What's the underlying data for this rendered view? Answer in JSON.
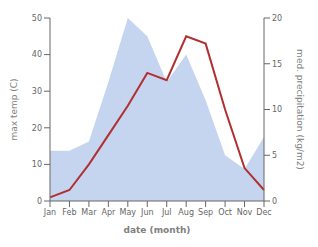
{
  "chart_data": {
    "type": "line",
    "xlabel": "date (month)",
    "ylabel": "max temp (C)",
    "y2label": "med. precipitation (kg/m2)",
    "categories": [
      "Jan",
      "Feb",
      "Mar",
      "Apr",
      "May",
      "Jun",
      "Jul",
      "Aug",
      "Sep",
      "Oct",
      "Nov",
      "Dec"
    ],
    "series": [
      {
        "type": "area",
        "axis": "y2",
        "color": "#c5d5ef",
        "values": [
          5.5,
          5.5,
          6.5,
          13,
          20,
          18,
          13,
          16,
          11,
          5,
          3.5,
          7
        ]
      },
      {
        "type": "line",
        "color": "#b03030",
        "values": [
          1,
          3,
          10,
          18,
          26,
          35,
          33,
          45,
          43,
          25,
          9,
          3
        ]
      }
    ],
    "ylim": [
      0,
      50
    ],
    "yticks": [
      0,
      10,
      20,
      30,
      40,
      50
    ],
    "y2lim": [
      0,
      20
    ],
    "y2ticks": [
      0,
      5,
      10,
      15,
      20
    ],
    "grid": false
  }
}
